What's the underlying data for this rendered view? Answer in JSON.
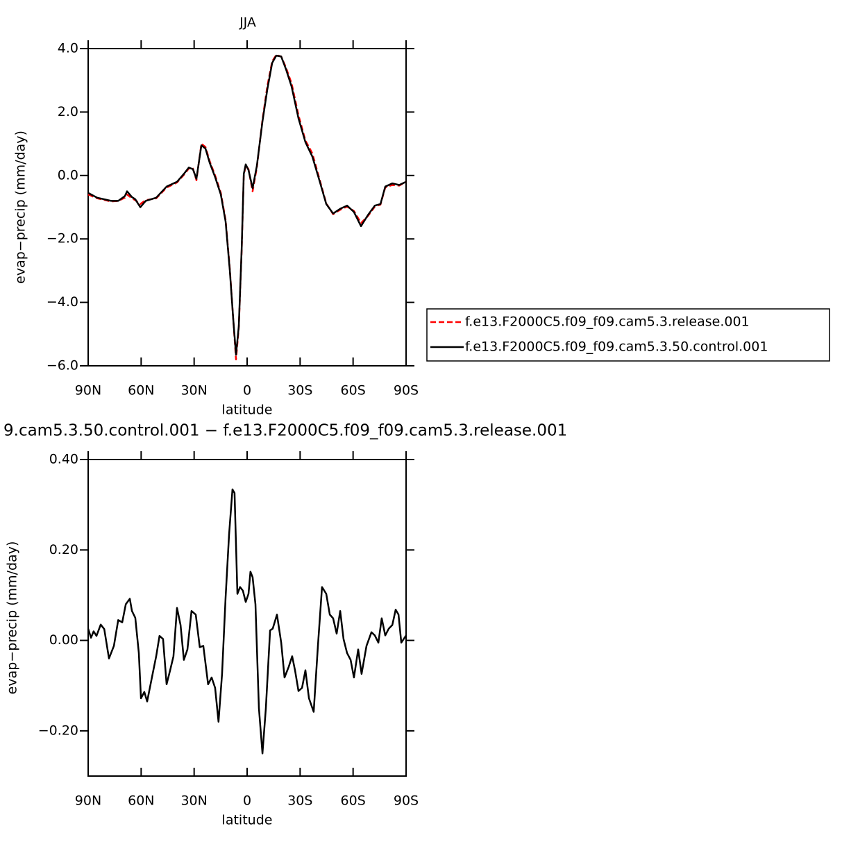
{
  "chart_data": [
    {
      "type": "line",
      "title": "JJA",
      "xlabel": "latitude",
      "ylabel": "evap−precip (mm/day)",
      "x": [
        90,
        84.9,
        77.0,
        73.0,
        69.2,
        68.0,
        65.2,
        63.3,
        60.5,
        57.4,
        51.5,
        45.6,
        39.7,
        35.8,
        33.0,
        30.7,
        28.7,
        25.9,
        23.6,
        21.2,
        18.1,
        14.9,
        12.2,
        9.8,
        7.9,
        6.3,
        4.7,
        3.1,
        1.9,
        0.8,
        -0.8,
        -3.1,
        -5.5,
        -8.7,
        -11.4,
        -14.2,
        -16.5,
        -19.3,
        -22.0,
        -25.2,
        -29.1,
        -33.0,
        -36.9,
        -40.9,
        -44.8,
        -48.7,
        -52.7,
        -56.6,
        -60.5,
        -64.5,
        -68.4,
        -72.3,
        -75.5,
        -78.2,
        -82.2,
        -86.1,
        -90
      ],
      "series": [
        {
          "name": "f.e13.F2000C5.f09_f09.cam5.3.release.001",
          "color": "#ff0000",
          "dashed": true,
          "values": [
            -0.6,
            -0.72,
            -0.82,
            -0.8,
            -0.7,
            -0.6,
            -0.72,
            -0.78,
            -0.9,
            -0.78,
            -0.72,
            -0.38,
            -0.22,
            0.02,
            0.22,
            0.22,
            -0.15,
            1.0,
            0.9,
            0.45,
            0.0,
            -0.55,
            -1.4,
            -2.95,
            -4.5,
            -5.8,
            -4.8,
            -2.4,
            0.0,
            0.32,
            0.2,
            -0.5,
            0.25,
            1.75,
            2.8,
            3.6,
            3.8,
            3.75,
            3.4,
            2.9,
            1.9,
            1.1,
            0.7,
            -0.1,
            -0.88,
            -1.22,
            -1.08,
            -0.98,
            -1.12,
            -1.5,
            -1.28,
            -0.98,
            -0.92,
            -0.38,
            -0.3,
            -0.32,
            -0.2
          ]
        },
        {
          "name": "f.e13.F2000C5.f09_f09.cam5.3.50.control.001",
          "color": "#000000",
          "dashed": false,
          "values": [
            -0.55,
            -0.7,
            -0.8,
            -0.8,
            -0.65,
            -0.5,
            -0.68,
            -0.75,
            -1.0,
            -0.8,
            -0.7,
            -0.35,
            -0.2,
            0.05,
            0.25,
            0.2,
            -0.1,
            0.95,
            0.85,
            0.4,
            -0.05,
            -0.6,
            -1.45,
            -3.0,
            -4.5,
            -5.65,
            -4.75,
            -2.35,
            0.05,
            0.35,
            0.17,
            -0.4,
            0.3,
            1.7,
            2.7,
            3.55,
            3.78,
            3.75,
            3.35,
            2.8,
            1.8,
            1.05,
            0.6,
            -0.15,
            -0.9,
            -1.2,
            -1.05,
            -0.95,
            -1.15,
            -1.6,
            -1.25,
            -0.95,
            -0.9,
            -0.35,
            -0.25,
            -0.3,
            -0.2
          ]
        }
      ],
      "xlim": [
        90,
        -90
      ],
      "xticks": [
        {
          "value": 90,
          "label": "90N"
        },
        {
          "value": 60,
          "label": "60N"
        },
        {
          "value": 30,
          "label": "30N"
        },
        0,
        {
          "value": -30,
          "label": "30S"
        },
        {
          "value": -60,
          "label": "60S"
        },
        {
          "value": -90,
          "label": "90S"
        }
      ],
      "ylim": [
        -6,
        4
      ],
      "yticks": [
        {
          "value": 4,
          "label": "4.0"
        },
        {
          "value": 2,
          "label": "2.0"
        },
        {
          "value": 0,
          "label": "0.0"
        },
        {
          "value": -2,
          "label": "−2.0"
        },
        {
          "value": -4,
          "label": "−4.0"
        },
        {
          "value": -6,
          "label": "−6.0"
        }
      ],
      "legend": "right"
    },
    {
      "type": "line",
      "title": "9.cam5.3.50.control.001 − f.e13.F2000C5.f09_f09.cam5.3.release.001",
      "xlabel": "latitude",
      "ylabel": "evap−precip (mm/day)",
      "x": [
        90,
        88.4,
        86.9,
        85.3,
        82.9,
        80.9,
        78.2,
        75.4,
        73.0,
        70.7,
        68.7,
        66.4,
        65.2,
        63.3,
        61.3,
        60.1,
        58.2,
        56.6,
        53.5,
        51.5,
        49.6,
        47.6,
        45.6,
        43.6,
        41.7,
        39.7,
        37.7,
        35.8,
        33.8,
        31.5,
        29.1,
        26.8,
        24.8,
        22.1,
        20.1,
        18.1,
        16.2,
        14.2,
        12.2,
        10.2,
        8.3,
        7.1,
        5.5,
        4.0,
        2.4,
        0.8,
        -0.8,
        -1.9,
        -3.1,
        -4.7,
        -6.7,
        -8.7,
        -10.6,
        -13.0,
        -14.5,
        -16.9,
        -19.3,
        -21.2,
        -23.6,
        -25.5,
        -27.1,
        -29.1,
        -31.1,
        -33.0,
        -35.0,
        -37.7,
        -40.1,
        -42.4,
        -44.8,
        -46.8,
        -48.7,
        -50.7,
        -52.7,
        -54.6,
        -56.6,
        -58.6,
        -60.5,
        -62.9,
        -64.8,
        -67.6,
        -70.4,
        -72.3,
        -74.3,
        -76.2,
        -78.2,
        -80.2,
        -82.2,
        -84.1,
        -85.7,
        -87.3,
        -90
      ],
      "series": [
        {
          "color": "#000000",
          "dashed": false,
          "values": [
            0.026,
            0.006,
            0.02,
            0.01,
            0.035,
            0.025,
            -0.04,
            -0.012,
            0.045,
            0.04,
            0.08,
            0.092,
            0.065,
            0.05,
            -0.028,
            -0.128,
            -0.114,
            -0.135,
            -0.074,
            -0.035,
            0.01,
            0.003,
            -0.097,
            -0.066,
            -0.035,
            0.072,
            0.034,
            -0.043,
            -0.02,
            0.065,
            0.057,
            -0.015,
            -0.012,
            -0.097,
            -0.082,
            -0.105,
            -0.18,
            -0.074,
            0.095,
            0.234,
            0.334,
            0.326,
            0.103,
            0.118,
            0.11,
            0.085,
            0.103,
            0.152,
            0.14,
            0.08,
            -0.15,
            -0.25,
            -0.15,
            0.022,
            0.026,
            0.057,
            -0.005,
            -0.082,
            -0.058,
            -0.035,
            -0.066,
            -0.112,
            -0.105,
            -0.066,
            -0.128,
            -0.158,
            -0.012,
            0.118,
            0.103,
            0.057,
            0.049,
            0.015,
            0.065,
            0.003,
            -0.028,
            -0.043,
            -0.082,
            -0.02,
            -0.074,
            -0.012,
            0.018,
            0.011,
            -0.005,
            0.049,
            0.011,
            0.026,
            0.034,
            0.068,
            0.057,
            -0.005,
            0.011
          ]
        }
      ],
      "xlim": [
        90,
        -90
      ],
      "xticks": [
        {
          "value": 90,
          "label": "90N"
        },
        {
          "value": 60,
          "label": "60N"
        },
        {
          "value": 30,
          "label": "30N"
        },
        0,
        {
          "value": -30,
          "label": "30S"
        },
        {
          "value": -60,
          "label": "60S"
        },
        {
          "value": -90,
          "label": "90S"
        }
      ],
      "ylim": [
        -0.3,
        0.4
      ],
      "yticks": [
        {
          "value": 0.4,
          "label": "0.40"
        },
        {
          "value": 0.2,
          "label": "0.20"
        },
        {
          "value": 0,
          "label": "0.00"
        },
        {
          "value": -0.2,
          "label": "−0.20"
        }
      ]
    }
  ]
}
